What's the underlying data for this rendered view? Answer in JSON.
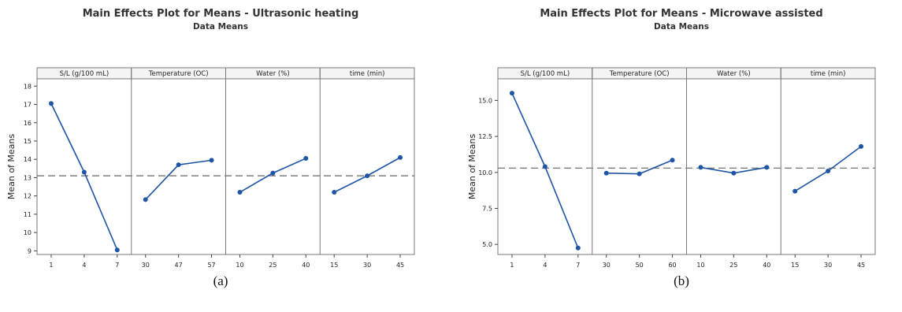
{
  "chart_data": [
    {
      "type": "line",
      "title": "Main Effects Plot for Means - Ultrasonic heating",
      "subtitle": "Data Means",
      "ylabel": "Mean of Means",
      "caption": "(a)",
      "ylim": [
        8.8,
        18.4
      ],
      "yticks": [
        9,
        10,
        11,
        12,
        13,
        14,
        15,
        16,
        17,
        18
      ],
      "ytick_labels": [
        "9",
        "10",
        "11",
        "12",
        "13",
        "14",
        "15",
        "16",
        "17",
        "18"
      ],
      "reference_line": 13.1,
      "panels": [
        {
          "label": "S/L (g/100 mL)",
          "categories": [
            "1",
            "4",
            "7"
          ],
          "values": [
            17.05,
            13.3,
            9.05
          ]
        },
        {
          "label": "Temperature (OC)",
          "categories": [
            "30",
            "47",
            "57"
          ],
          "values": [
            11.8,
            13.7,
            13.95
          ]
        },
        {
          "label": "Water (%)",
          "categories": [
            "10",
            "25",
            "40"
          ],
          "values": [
            12.2,
            13.25,
            14.05
          ]
        },
        {
          "label": "time (min)",
          "categories": [
            "15",
            "30",
            "45"
          ],
          "values": [
            12.2,
            13.1,
            14.1
          ]
        }
      ]
    },
    {
      "type": "line",
      "title": "Main Effects Plot for Means - Microwave assisted",
      "subtitle": "Data Means",
      "ylabel": "Mean of Means",
      "caption": "(b)",
      "ylim": [
        4.3,
        16.5
      ],
      "yticks": [
        5.0,
        7.5,
        10.0,
        12.5,
        15.0
      ],
      "ytick_labels": [
        "5.0",
        "7.5",
        "10.0",
        "12.5",
        "15.0"
      ],
      "reference_line": 10.3,
      "panels": [
        {
          "label": "S/L (g/100 mL)",
          "categories": [
            "1",
            "4",
            "7"
          ],
          "values": [
            15.5,
            10.4,
            4.75
          ]
        },
        {
          "label": "Temperature (OC)",
          "categories": [
            "30",
            "50",
            "60"
          ],
          "values": [
            9.95,
            9.9,
            10.85
          ]
        },
        {
          "label": "Water (%)",
          "categories": [
            "10",
            "25",
            "40"
          ],
          "values": [
            10.35,
            9.95,
            10.35
          ]
        },
        {
          "label": "time (min)",
          "categories": [
            "15",
            "30",
            "45"
          ],
          "values": [
            8.7,
            10.1,
            11.8
          ]
        }
      ]
    }
  ],
  "colors": {
    "line": "#1f55a5",
    "reference": "#666666",
    "frame": "#7a7a7a",
    "header_bg": "#f4f4f4"
  }
}
